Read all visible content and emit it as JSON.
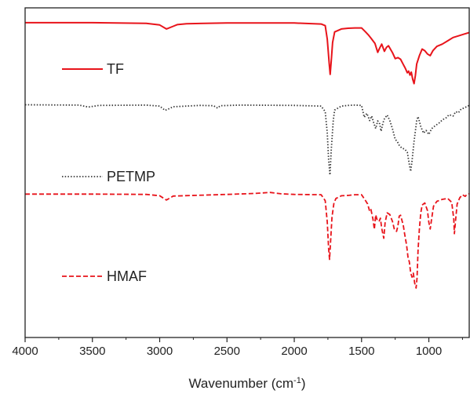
{
  "chart_data": {
    "type": "line",
    "xlabel": "Wavenumber (cm",
    "xlabel_sup": "-1",
    "xlabel_tail": ")",
    "ylabel": "",
    "xlim": [
      4000,
      700
    ],
    "x_reversed": true,
    "x_ticks": [
      4000,
      3500,
      3000,
      2500,
      2000,
      1500,
      1000
    ],
    "x_tick_labels": [
      "4000",
      "3500",
      "3000",
      "2500",
      "2000",
      "1500",
      "1000"
    ],
    "ylim": [
      0,
      100
    ],
    "grid": false,
    "legend_position": "inline-left",
    "series": [
      {
        "name": "TF",
        "color": "#e8141b",
        "style": "solid",
        "points": [
          [
            4000,
            95.5
          ],
          [
            3500,
            95.5
          ],
          [
            3100,
            95.3
          ],
          [
            3000,
            94.8
          ],
          [
            2950,
            93.6
          ],
          [
            2900,
            94.4
          ],
          [
            2870,
            94.9
          ],
          [
            2800,
            95.2
          ],
          [
            2500,
            95.4
          ],
          [
            2000,
            95.4
          ],
          [
            1800,
            95.1
          ],
          [
            1770,
            94.6
          ],
          [
            1755,
            90.5
          ],
          [
            1740,
            83
          ],
          [
            1733,
            79.8
          ],
          [
            1725,
            84
          ],
          [
            1715,
            89.5
          ],
          [
            1700,
            92.7
          ],
          [
            1650,
            93.6
          ],
          [
            1600,
            93.8
          ],
          [
            1550,
            93.9
          ],
          [
            1500,
            93.9
          ],
          [
            1470,
            92.7
          ],
          [
            1450,
            91.8
          ],
          [
            1430,
            90.8
          ],
          [
            1400,
            89.2
          ],
          [
            1380,
            86.5
          ],
          [
            1365,
            87.8
          ],
          [
            1350,
            89
          ],
          [
            1330,
            86.8
          ],
          [
            1315,
            88
          ],
          [
            1300,
            88.5
          ],
          [
            1270,
            86.4
          ],
          [
            1250,
            84.6
          ],
          [
            1230,
            84.9
          ],
          [
            1210,
            84.4
          ],
          [
            1190,
            82.8
          ],
          [
            1175,
            81.7
          ],
          [
            1160,
            80.3
          ],
          [
            1150,
            80.8
          ],
          [
            1140,
            79.6
          ],
          [
            1130,
            80.5
          ],
          [
            1120,
            78.3
          ],
          [
            1110,
            77
          ],
          [
            1100,
            79.5
          ],
          [
            1090,
            83
          ],
          [
            1070,
            85.5
          ],
          [
            1050,
            87.5
          ],
          [
            1030,
            87
          ],
          [
            1010,
            86
          ],
          [
            990,
            85.5
          ],
          [
            970,
            87
          ],
          [
            940,
            88.3
          ],
          [
            900,
            89
          ],
          [
            860,
            90
          ],
          [
            820,
            91
          ],
          [
            780,
            91.5
          ],
          [
            740,
            92
          ],
          [
            700,
            92.5
          ]
        ]
      },
      {
        "name": "PETMP",
        "color": "#3a3a3a",
        "style": "dotted",
        "points": [
          [
            4000,
            70.6
          ],
          [
            3600,
            70.5
          ],
          [
            3530,
            69.9
          ],
          [
            3450,
            70.4
          ],
          [
            3100,
            70.5
          ],
          [
            3000,
            70.2
          ],
          [
            2960,
            68.9
          ],
          [
            2930,
            69.4
          ],
          [
            2900,
            70
          ],
          [
            2700,
            70.4
          ],
          [
            2600,
            70.3
          ],
          [
            2570,
            69.6
          ],
          [
            2550,
            70.3
          ],
          [
            2400,
            70.5
          ],
          [
            2000,
            70.4
          ],
          [
            1800,
            70.2
          ],
          [
            1770,
            68.5
          ],
          [
            1755,
            62
          ],
          [
            1745,
            54
          ],
          [
            1735,
            49.3
          ],
          [
            1725,
            57
          ],
          [
            1710,
            66
          ],
          [
            1700,
            69
          ],
          [
            1650,
            70.2
          ],
          [
            1600,
            70.4
          ],
          [
            1550,
            70.5
          ],
          [
            1500,
            70.4
          ],
          [
            1480,
            66.8
          ],
          [
            1460,
            68
          ],
          [
            1440,
            65.8
          ],
          [
            1425,
            67.2
          ],
          [
            1410,
            65.2
          ],
          [
            1395,
            63.4
          ],
          [
            1380,
            65.7
          ],
          [
            1365,
            64.8
          ],
          [
            1355,
            62.6
          ],
          [
            1340,
            65.2
          ],
          [
            1330,
            66.3
          ],
          [
            1310,
            67.5
          ],
          [
            1290,
            65.8
          ],
          [
            1270,
            63.3
          ],
          [
            1250,
            60.1
          ],
          [
            1235,
            59.5
          ],
          [
            1220,
            58.3
          ],
          [
            1200,
            57.4
          ],
          [
            1180,
            57.2
          ],
          [
            1160,
            56.2
          ],
          [
            1145,
            52.5
          ],
          [
            1135,
            50.4
          ],
          [
            1125,
            53.5
          ],
          [
            1110,
            59.5
          ],
          [
            1090,
            65.8
          ],
          [
            1080,
            67
          ],
          [
            1060,
            64
          ],
          [
            1040,
            62
          ],
          [
            1020,
            62.8
          ],
          [
            1000,
            61.6
          ],
          [
            980,
            63.3
          ],
          [
            960,
            64
          ],
          [
            940,
            64.6
          ],
          [
            920,
            65.2
          ],
          [
            900,
            66
          ],
          [
            870,
            66.7
          ],
          [
            850,
            67.6
          ],
          [
            820,
            67.2
          ],
          [
            800,
            68.5
          ],
          [
            780,
            68.2
          ],
          [
            760,
            69.3
          ],
          [
            740,
            69.6
          ],
          [
            720,
            70
          ],
          [
            700,
            70.4
          ]
        ]
      },
      {
        "name": "HMAF",
        "color": "#e8141b",
        "style": "dashed",
        "points": [
          [
            4000,
            43.5
          ],
          [
            3500,
            43.5
          ],
          [
            3100,
            43.4
          ],
          [
            3000,
            43
          ],
          [
            2950,
            41.7
          ],
          [
            2920,
            42.4
          ],
          [
            2900,
            42.9
          ],
          [
            2500,
            43.4
          ],
          [
            2300,
            43.7
          ],
          [
            2180,
            44
          ],
          [
            2100,
            43.6
          ],
          [
            2000,
            43.4
          ],
          [
            1800,
            43.3
          ],
          [
            1770,
            41.5
          ],
          [
            1755,
            35
          ],
          [
            1745,
            27
          ],
          [
            1738,
            23.7
          ],
          [
            1730,
            29
          ],
          [
            1720,
            36.5
          ],
          [
            1705,
            40.8
          ],
          [
            1690,
            42.2
          ],
          [
            1650,
            43
          ],
          [
            1600,
            43.1
          ],
          [
            1550,
            43.3
          ],
          [
            1500,
            43.3
          ],
          [
            1470,
            41.5
          ],
          [
            1455,
            40.5
          ],
          [
            1440,
            38.3
          ],
          [
            1430,
            38.8
          ],
          [
            1415,
            35.8
          ],
          [
            1405,
            32.8
          ],
          [
            1395,
            37.2
          ],
          [
            1385,
            35.8
          ],
          [
            1370,
            35.2
          ],
          [
            1360,
            36.2
          ],
          [
            1350,
            33.1
          ],
          [
            1335,
            30.1
          ],
          [
            1325,
            34.8
          ],
          [
            1310,
            37.8
          ],
          [
            1290,
            37.3
          ],
          [
            1270,
            35.2
          ],
          [
            1255,
            32.6
          ],
          [
            1240,
            32.2
          ],
          [
            1230,
            33.8
          ],
          [
            1220,
            36.8
          ],
          [
            1210,
            37.1
          ],
          [
            1190,
            34
          ],
          [
            1180,
            31.4
          ],
          [
            1165,
            28
          ],
          [
            1155,
            24.3
          ],
          [
            1145,
            22.9
          ],
          [
            1135,
            19.6
          ],
          [
            1125,
            18.3
          ],
          [
            1115,
            19.5
          ],
          [
            1105,
            16.5
          ],
          [
            1095,
            15
          ],
          [
            1088,
            18
          ],
          [
            1080,
            26.5
          ],
          [
            1070,
            33
          ],
          [
            1060,
            37.8
          ],
          [
            1050,
            40.2
          ],
          [
            1030,
            40.8
          ],
          [
            1010,
            38.5
          ],
          [
            1000,
            35
          ],
          [
            990,
            32.9
          ],
          [
            980,
            35.8
          ],
          [
            965,
            39.8
          ],
          [
            940,
            41.3
          ],
          [
            900,
            41.9
          ],
          [
            860,
            42.2
          ],
          [
            830,
            41
          ],
          [
            815,
            36
          ],
          [
            810,
            31.5
          ],
          [
            800,
            36
          ],
          [
            790,
            40.5
          ],
          [
            770,
            42.4
          ],
          [
            750,
            43.3
          ],
          [
            730,
            42.8
          ],
          [
            715,
            43.5
          ],
          [
            700,
            43.6
          ]
        ]
      }
    ]
  }
}
